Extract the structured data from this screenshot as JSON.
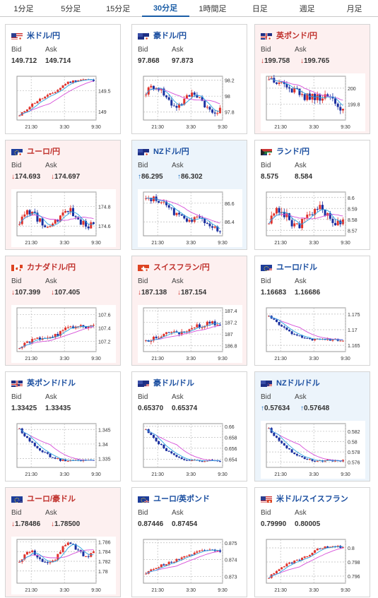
{
  "tabs": [
    {
      "label": "1分足",
      "active": false
    },
    {
      "label": "5分足",
      "active": false
    },
    {
      "label": "15分足",
      "active": false
    },
    {
      "label": "30分足",
      "active": true
    },
    {
      "label": "1時間足",
      "active": false
    },
    {
      "label": "日足",
      "active": false
    },
    {
      "label": "週足",
      "active": false
    },
    {
      "label": "月足",
      "active": false
    }
  ],
  "labels": {
    "bid": "Bid",
    "ask": "Ask"
  },
  "arrows": {
    "down": "↓",
    "up": "↑"
  },
  "colors": {
    "down_bg": "#fdf0f0",
    "up_bg": "#ecf4fb",
    "candle_up": "#e0322b",
    "candle_down": "#1a2fa0",
    "ma": "#d64fd8",
    "ma_short": "#2aa3e0",
    "link": "#1a4ea0"
  },
  "cards": [
    {
      "pair": "米ドル/円",
      "flag": "us-jp",
      "trend": "none",
      "bid": "149.712",
      "ask": "149.714",
      "yticks": [
        "149.5",
        "149"
      ],
      "ylim": [
        148.8,
        149.85
      ],
      "ytickvals": [
        149.5,
        149.0
      ],
      "xticks": [
        "21:30",
        "3:30",
        "9:30"
      ],
      "shape": "rise",
      "start": 148.9,
      "end": 149.72,
      "noise": 0.06
    },
    {
      "pair": "豪ドル/円",
      "flag": "au-jp",
      "trend": "none",
      "bid": "97.868",
      "ask": "97.873",
      "yticks": [
        "98.2",
        "98",
        "97.8"
      ],
      "ylim": [
        97.7,
        98.25
      ],
      "ytickvals": [
        98.2,
        98.0,
        97.8
      ],
      "xticks": [
        "21:30",
        "3:30",
        "9:30"
      ],
      "shape": "wave",
      "start": 98.05,
      "end": 97.87,
      "noise": 0.08
    },
    {
      "pair": "英ポンド/円",
      "flag": "gb-jp",
      "trend": "down",
      "bid": "199.758",
      "ask": "199.765",
      "yticks": [
        "200",
        "199.8"
      ],
      "ylim": [
        199.6,
        200.15
      ],
      "ytickvals": [
        200.0,
        199.8
      ],
      "xticks": [
        "21:30",
        "3:30",
        "9:30"
      ],
      "shape": "fall",
      "start": 200.1,
      "end": 199.76,
      "noise": 0.1
    },
    {
      "pair": "ユーロ/円",
      "flag": "eu-jp",
      "trend": "down",
      "bid": "174.693",
      "ask": "174.697",
      "yticks": [
        "174.8",
        "174.6"
      ],
      "ylim": [
        174.5,
        174.95
      ],
      "ytickvals": [
        174.8,
        174.6
      ],
      "xticks": [
        "21:30",
        "3:30",
        "9:30"
      ],
      "shape": "wave",
      "start": 174.65,
      "end": 174.69,
      "noise": 0.07
    },
    {
      "pair": "NZドル/円",
      "flag": "nz-jp",
      "trend": "up",
      "bid": "86.295",
      "ask": "86.302",
      "yticks": [
        "86.6",
        "86.4"
      ],
      "ylim": [
        86.25,
        86.72
      ],
      "ytickvals": [
        86.6,
        86.4
      ],
      "xticks": [
        "21:30",
        "3:30",
        "9:30"
      ],
      "shape": "fall",
      "start": 86.65,
      "end": 86.3,
      "noise": 0.06
    },
    {
      "pair": "ランド/円",
      "flag": "za-jp",
      "trend": "none",
      "bid": "8.575",
      "ask": "8.584",
      "yticks": [
        "8.6",
        "8.59",
        "8.58",
        "8.57"
      ],
      "ylim": [
        8.565,
        8.605
      ],
      "ytickvals": [
        8.6,
        8.59,
        8.58,
        8.57
      ],
      "xticks": [
        "21:30",
        "3:30",
        "9:30"
      ],
      "shape": "wave",
      "start": 8.58,
      "end": 8.585,
      "noise": 0.008
    },
    {
      "pair": "カナダドル/円",
      "flag": "ca-jp",
      "trend": "down",
      "bid": "107.399",
      "ask": "107.405",
      "yticks": [
        "107.6",
        "107.4",
        "107.2"
      ],
      "ylim": [
        107.05,
        107.7
      ],
      "ytickvals": [
        107.6,
        107.4,
        107.2
      ],
      "xticks": [
        "21:30",
        "3:30",
        "9:30"
      ],
      "shape": "rise",
      "start": 107.1,
      "end": 107.4,
      "noise": 0.07
    },
    {
      "pair": "スイスフラン/円",
      "flag": "ch-jp",
      "trend": "down",
      "bid": "187.138",
      "ask": "187.154",
      "yticks": [
        "187.4",
        "187.2",
        "187",
        "186.8"
      ],
      "ylim": [
        186.7,
        187.45
      ],
      "ytickvals": [
        187.4,
        187.2,
        187.0,
        186.8
      ],
      "xticks": [
        "21:30",
        "3:30",
        "9:30"
      ],
      "shape": "rise",
      "start": 186.85,
      "end": 187.14,
      "noise": 0.09
    },
    {
      "pair": "ユーロ/ドル",
      "flag": "eu-us",
      "trend": "none",
      "bid": "1.16683",
      "ask": "1.16686",
      "yticks": [
        "1.175",
        "1.17",
        "1.165"
      ],
      "ylim": [
        1.163,
        1.177
      ],
      "ytickvals": [
        1.175,
        1.17,
        1.165
      ],
      "xticks": [
        "21:30",
        "3:30",
        "9:30"
      ],
      "shape": "drop",
      "start": 1.1745,
      "end": 1.1668,
      "noise": 0.0008
    },
    {
      "pair": "英ポンド/ドル",
      "flag": "gb-us",
      "trend": "none",
      "bid": "1.33425",
      "ask": "1.33435",
      "yticks": [
        "1.345",
        "1.34",
        "1.335"
      ],
      "ylim": [
        1.332,
        1.347
      ],
      "ytickvals": [
        1.345,
        1.34,
        1.335
      ],
      "xticks": [
        "21:30",
        "3:30",
        "9:30"
      ],
      "shape": "drop",
      "start": 1.345,
      "end": 1.3343,
      "noise": 0.0008
    },
    {
      "pair": "豪ドル/ドル",
      "flag": "au-us",
      "trend": "none",
      "bid": "0.65370",
      "ask": "0.65374",
      "yticks": [
        "0.66",
        "0.658",
        "0.656",
        "0.654"
      ],
      "ylim": [
        0.6525,
        0.6605
      ],
      "ytickvals": [
        0.66,
        0.658,
        0.656,
        0.654
      ],
      "xticks": [
        "21:30",
        "3:30",
        "9:30"
      ],
      "shape": "drop",
      "start": 0.6595,
      "end": 0.6537,
      "noise": 0.0004
    },
    {
      "pair": "NZドル/ドル",
      "flag": "nz-us",
      "trend": "up",
      "bid": "0.57634",
      "ask": "0.57648",
      "yticks": [
        "0.582",
        "0.58",
        "0.578",
        "0.576"
      ],
      "ylim": [
        0.575,
        0.5835
      ],
      "ytickvals": [
        0.582,
        0.58,
        0.578,
        0.576
      ],
      "xticks": [
        "21:30",
        "3:30",
        "9:30"
      ],
      "shape": "drop",
      "start": 0.5825,
      "end": 0.5763,
      "noise": 0.0004
    },
    {
      "pair": "ユーロ/豪ドル",
      "flag": "eu-au",
      "trend": "down",
      "bid": "1.78486",
      "ask": "1.78500",
      "yticks": [
        "1.786",
        "1.784",
        "1.782",
        "1.78"
      ],
      "ylim": [
        1.7775,
        1.7865
      ],
      "ytickvals": [
        1.786,
        1.784,
        1.782,
        1.78
      ],
      "xticks": [
        "21:30",
        "3:30",
        "9:30"
      ],
      "shape": "wave",
      "start": 1.782,
      "end": 1.7849,
      "noise": 0.0008
    },
    {
      "pair": "ユーロ/英ポンド",
      "flag": "eu-gb",
      "trend": "none",
      "bid": "0.87446",
      "ask": "0.87454",
      "yticks": [
        "0.875",
        "0.874",
        "0.873"
      ],
      "ylim": [
        0.8726,
        0.8752
      ],
      "ytickvals": [
        0.875,
        0.874,
        0.873
      ],
      "xticks": [
        "21:30",
        "3:30",
        "9:30"
      ],
      "shape": "rise",
      "start": 0.8731,
      "end": 0.87448,
      "noise": 0.0002
    },
    {
      "pair": "米ドル/スイスフラン",
      "flag": "us-ch",
      "trend": "none",
      "bid": "0.79990",
      "ask": "0.80005",
      "yticks": [
        "0.8",
        "0.798",
        "0.796"
      ],
      "ylim": [
        0.795,
        0.8012
      ],
      "ytickvals": [
        0.8,
        0.798,
        0.796
      ],
      "xticks": [
        "21:30",
        "3:30",
        "9:30"
      ],
      "shape": "rise",
      "start": 0.7958,
      "end": 0.7999,
      "noise": 0.0003
    }
  ]
}
